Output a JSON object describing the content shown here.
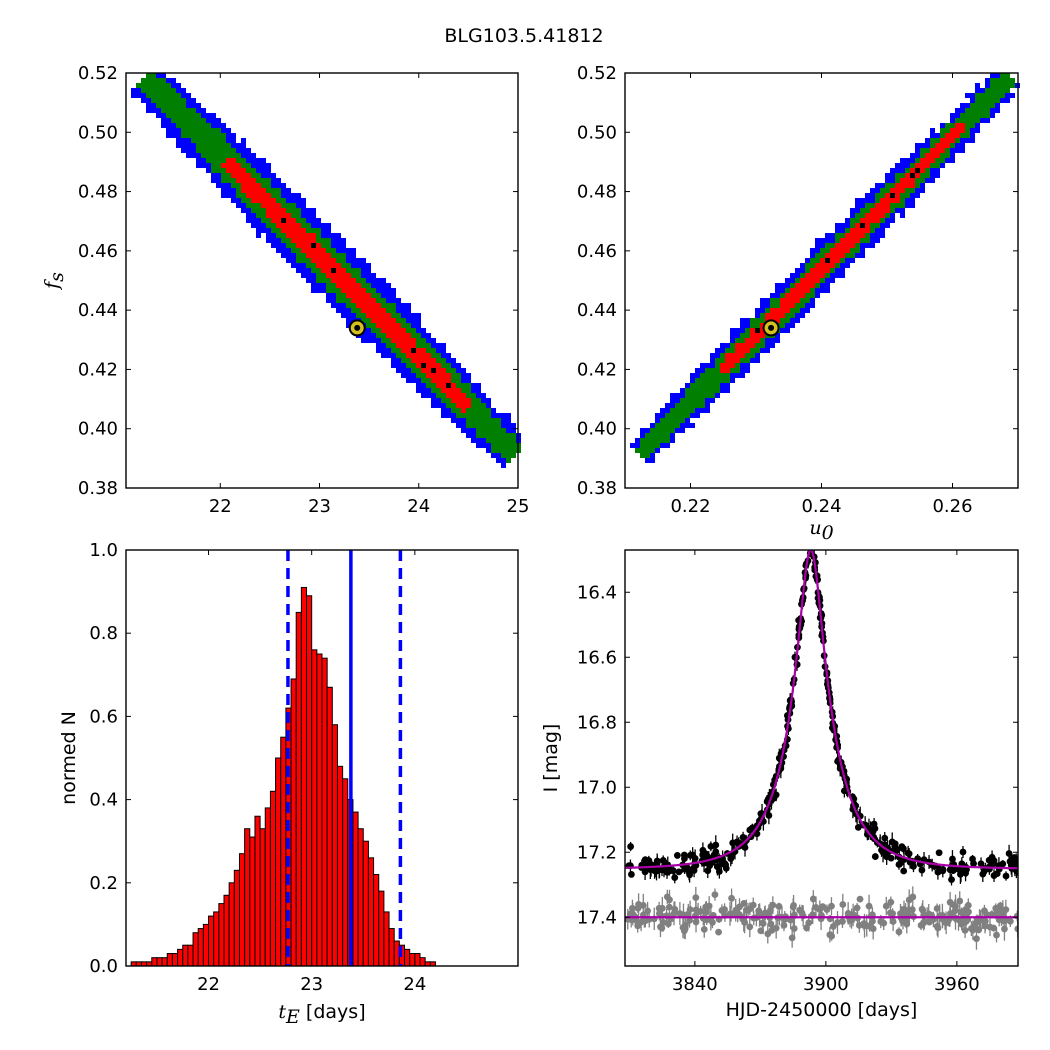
{
  "figure_title": "BLG103.5.41812",
  "colors": {
    "blue": "#0000ff",
    "green": "#007f00",
    "red": "#ff0000",
    "black": "#000000",
    "hist_fill": "#ff0000",
    "magenta": "#aa00aa",
    "gray": "#808080",
    "marker_fill": "#d4c020"
  },
  "chart_data": [
    {
      "id": "tE-fs",
      "type": "heatmap",
      "title": "",
      "xlabel": "",
      "ylabel": "f_s",
      "xlim": [
        21.05,
        25.0
      ],
      "ylim": [
        0.38,
        0.52
      ],
      "xticks": [
        22,
        23,
        24,
        25
      ],
      "yticks": [
        0.38,
        0.4,
        0.42,
        0.44,
        0.46,
        0.48,
        0.5,
        0.52
      ],
      "xtick_labels": [
        "22",
        "23",
        "24",
        "25"
      ],
      "ytick_labels": [
        "0.38",
        "0.40",
        "0.42",
        "0.44",
        "0.46",
        "0.48",
        "0.50",
        "0.52"
      ],
      "levels": [
        "blue",
        "green",
        "red",
        "black"
      ],
      "ridge": {
        "x0": 21.25,
        "y0": 0.518,
        "x1": 24.95,
        "y1": 0.392
      },
      "best_fit": {
        "x": 23.38,
        "y": 0.434
      }
    },
    {
      "id": "u0-fs",
      "type": "heatmap",
      "title": "",
      "xlabel": "u_0",
      "ylabel": "",
      "xlim": [
        0.21,
        0.27
      ],
      "ylim": [
        0.38,
        0.52
      ],
      "xticks": [
        0.22,
        0.24,
        0.26
      ],
      "yticks": [
        0.38,
        0.4,
        0.42,
        0.44,
        0.46,
        0.48,
        0.5,
        0.52
      ],
      "xtick_labels": [
        "0.22",
        "0.24",
        "0.26"
      ],
      "ytick_labels": [
        "0.38",
        "0.40",
        "0.42",
        "0.44",
        "0.46",
        "0.48",
        "0.50",
        "0.52"
      ],
      "levels": [
        "blue",
        "green",
        "red",
        "black"
      ],
      "ridge": {
        "x0": 0.2125,
        "y0": 0.392,
        "x1": 0.2685,
        "y1": 0.518
      },
      "best_fit": {
        "x": 0.2323,
        "y": 0.434
      }
    },
    {
      "id": "tE-hist",
      "type": "bar",
      "title": "",
      "xlabel": "t_E [days]",
      "ylabel": "normed N",
      "xlim": [
        21.2,
        25.0
      ],
      "ylim": [
        0.0,
        1.0
      ],
      "xticks": [
        22,
        23,
        24
      ],
      "yticks": [
        0.0,
        0.2,
        0.4,
        0.6,
        0.8,
        1.0
      ],
      "xtick_labels": [
        "22",
        "23",
        "24"
      ],
      "ytick_labels": [
        "0.0",
        "0.2",
        "0.4",
        "0.6",
        "0.8",
        "1.0"
      ],
      "bin_start": 21.25,
      "bin_width": 0.05,
      "values": [
        0.01,
        0.01,
        0.01,
        0.01,
        0.02,
        0.02,
        0.02,
        0.03,
        0.03,
        0.04,
        0.05,
        0.05,
        0.08,
        0.09,
        0.1,
        0.12,
        0.13,
        0.15,
        0.17,
        0.2,
        0.23,
        0.27,
        0.33,
        0.31,
        0.36,
        0.33,
        0.38,
        0.42,
        0.5,
        0.55,
        0.62,
        0.69,
        0.85,
        0.91,
        0.89,
        0.76,
        0.75,
        0.74,
        0.67,
        0.58,
        0.48,
        0.45,
        0.4,
        0.37,
        0.33,
        0.3,
        0.26,
        0.22,
        0.18,
        0.13,
        0.09,
        0.06,
        0.05,
        0.04,
        0.03,
        0.03,
        0.02,
        0.01,
        0.01
      ],
      "median": 23.38,
      "lower": 22.77,
      "upper": 23.86
    },
    {
      "id": "lightcurve",
      "type": "scatter",
      "title": "",
      "xlabel": "HJD-2450000 [days]",
      "ylabel": "I [mag]",
      "xlim": [
        3808,
        3988
      ],
      "ylim": [
        17.55,
        16.27
      ],
      "xticks": [
        3840,
        3900,
        3960
      ],
      "yticks": [
        16.4,
        16.6,
        16.8,
        17.0,
        17.2,
        17.4
      ],
      "xtick_labels": [
        "3840",
        "3900",
        "3960"
      ],
      "ytick_labels": [
        "16.4",
        "16.6",
        "16.8",
        "17.0",
        "17.2",
        "17.4"
      ],
      "model": {
        "t0": 3893.1,
        "tE": 23.38,
        "u0": 0.2323,
        "fs": 0.434,
        "baseline": 17.252,
        "flat_level": 17.4
      },
      "series": [
        {
          "color": "black",
          "scatter": 0.018,
          "count": 380
        },
        {
          "color": "gray",
          "scatter": 0.025,
          "count": 260
        }
      ]
    }
  ]
}
